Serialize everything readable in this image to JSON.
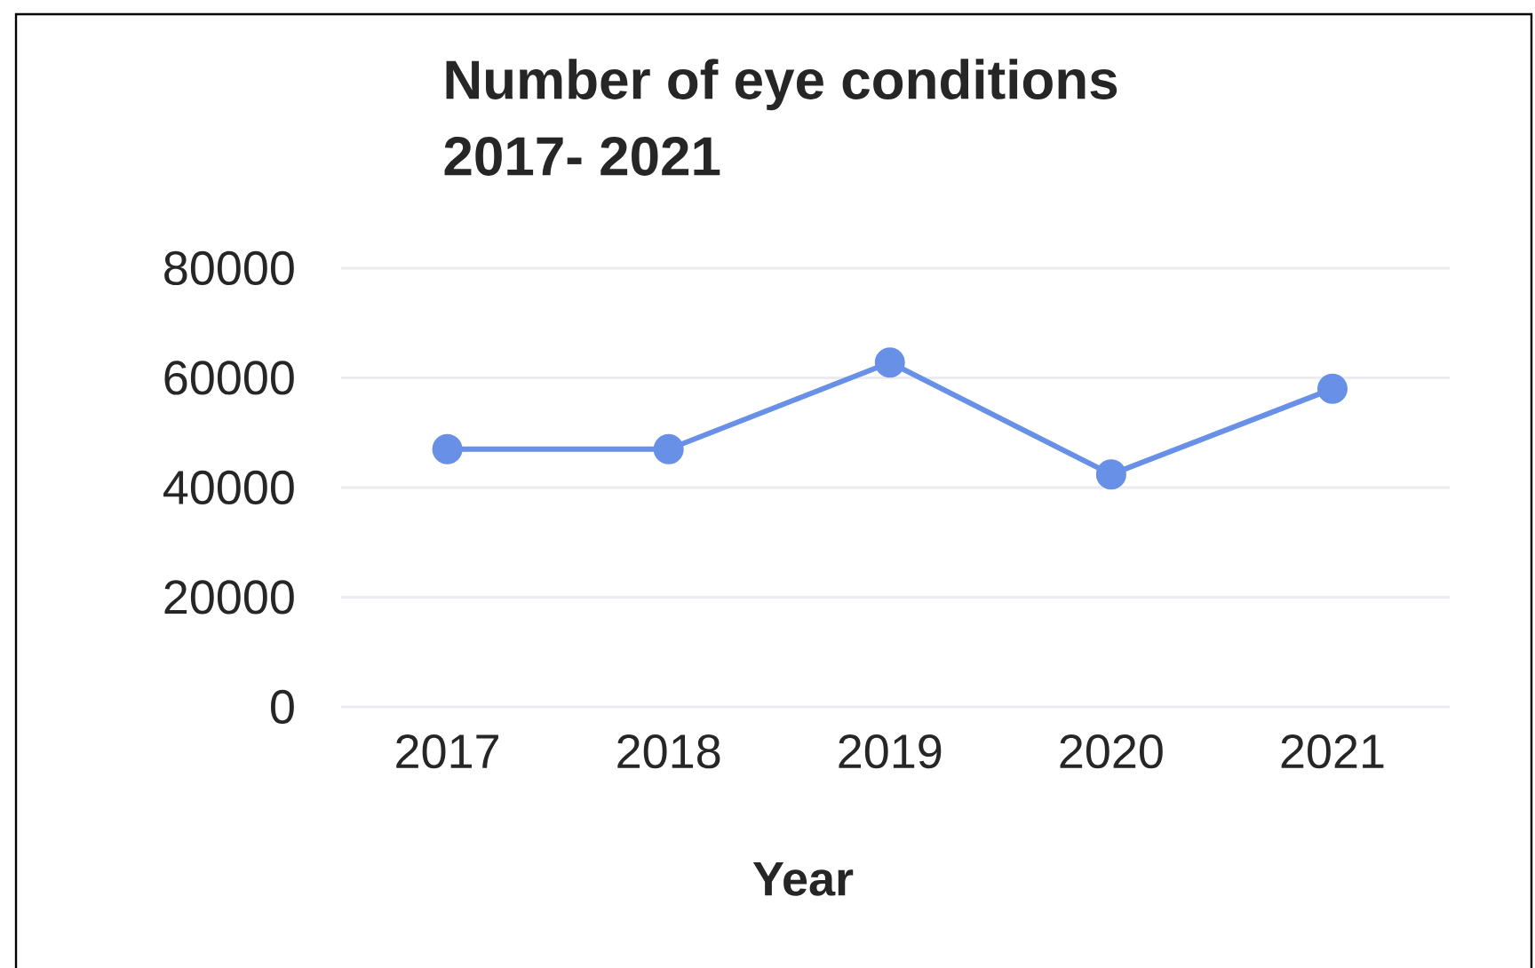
{
  "chart_data": {
    "type": "line",
    "title": "Number of eye conditions\n2017- 2021",
    "xlabel": "Year",
    "categories": [
      "2017",
      "2018",
      "2019",
      "2020",
      "2021"
    ],
    "series": [
      {
        "color": "#6890e6",
        "values": [
          47000,
          47000,
          62800,
          42400,
          58000
        ]
      }
    ],
    "ylim": [
      0,
      80000
    ],
    "yticks": [
      0,
      20000,
      40000,
      60000,
      80000
    ],
    "grid": "y",
    "marker": "circle",
    "line_style": "solid"
  }
}
